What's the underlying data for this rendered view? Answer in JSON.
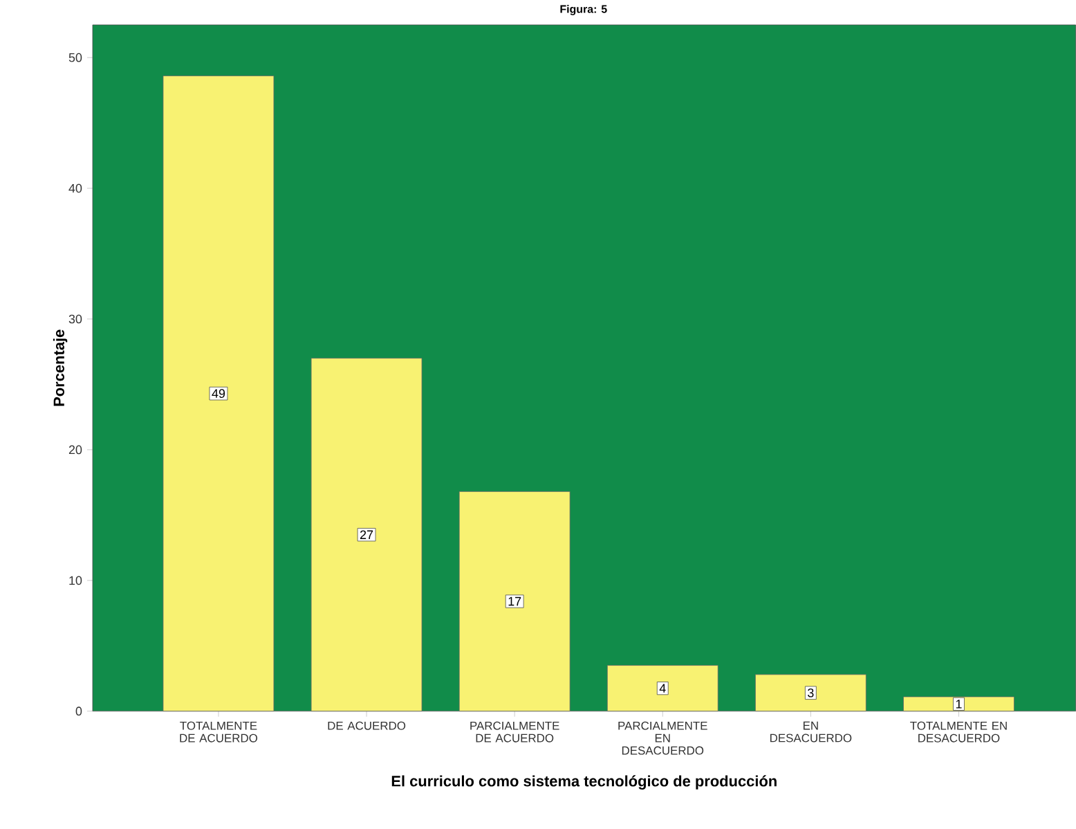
{
  "chart_data": {
    "type": "bar",
    "title": "Figura: 5",
    "xlabel": "El curriculo como sistema tecnológico de producción",
    "ylabel": "Porcentaje",
    "categories": [
      "TOTALMENTE DE ACUERDO",
      "DE ACUERDO",
      "PARCIALMENTE DE ACUERDO",
      "PARCIALMENTE EN DESACUERDO",
      "EN DESACUERDO",
      "TOTALMENTE EN DESACUERDO"
    ],
    "values": [
      48.6,
      27.0,
      16.8,
      3.5,
      2.8,
      1.1
    ],
    "value_labels": [
      "49",
      "27",
      "17",
      "4",
      "3",
      "1"
    ],
    "color": "#f8f272",
    "ylim": [
      0,
      52.5
    ],
    "yticks": [
      0,
      10,
      20,
      30,
      40,
      50
    ],
    "grid": false
  }
}
